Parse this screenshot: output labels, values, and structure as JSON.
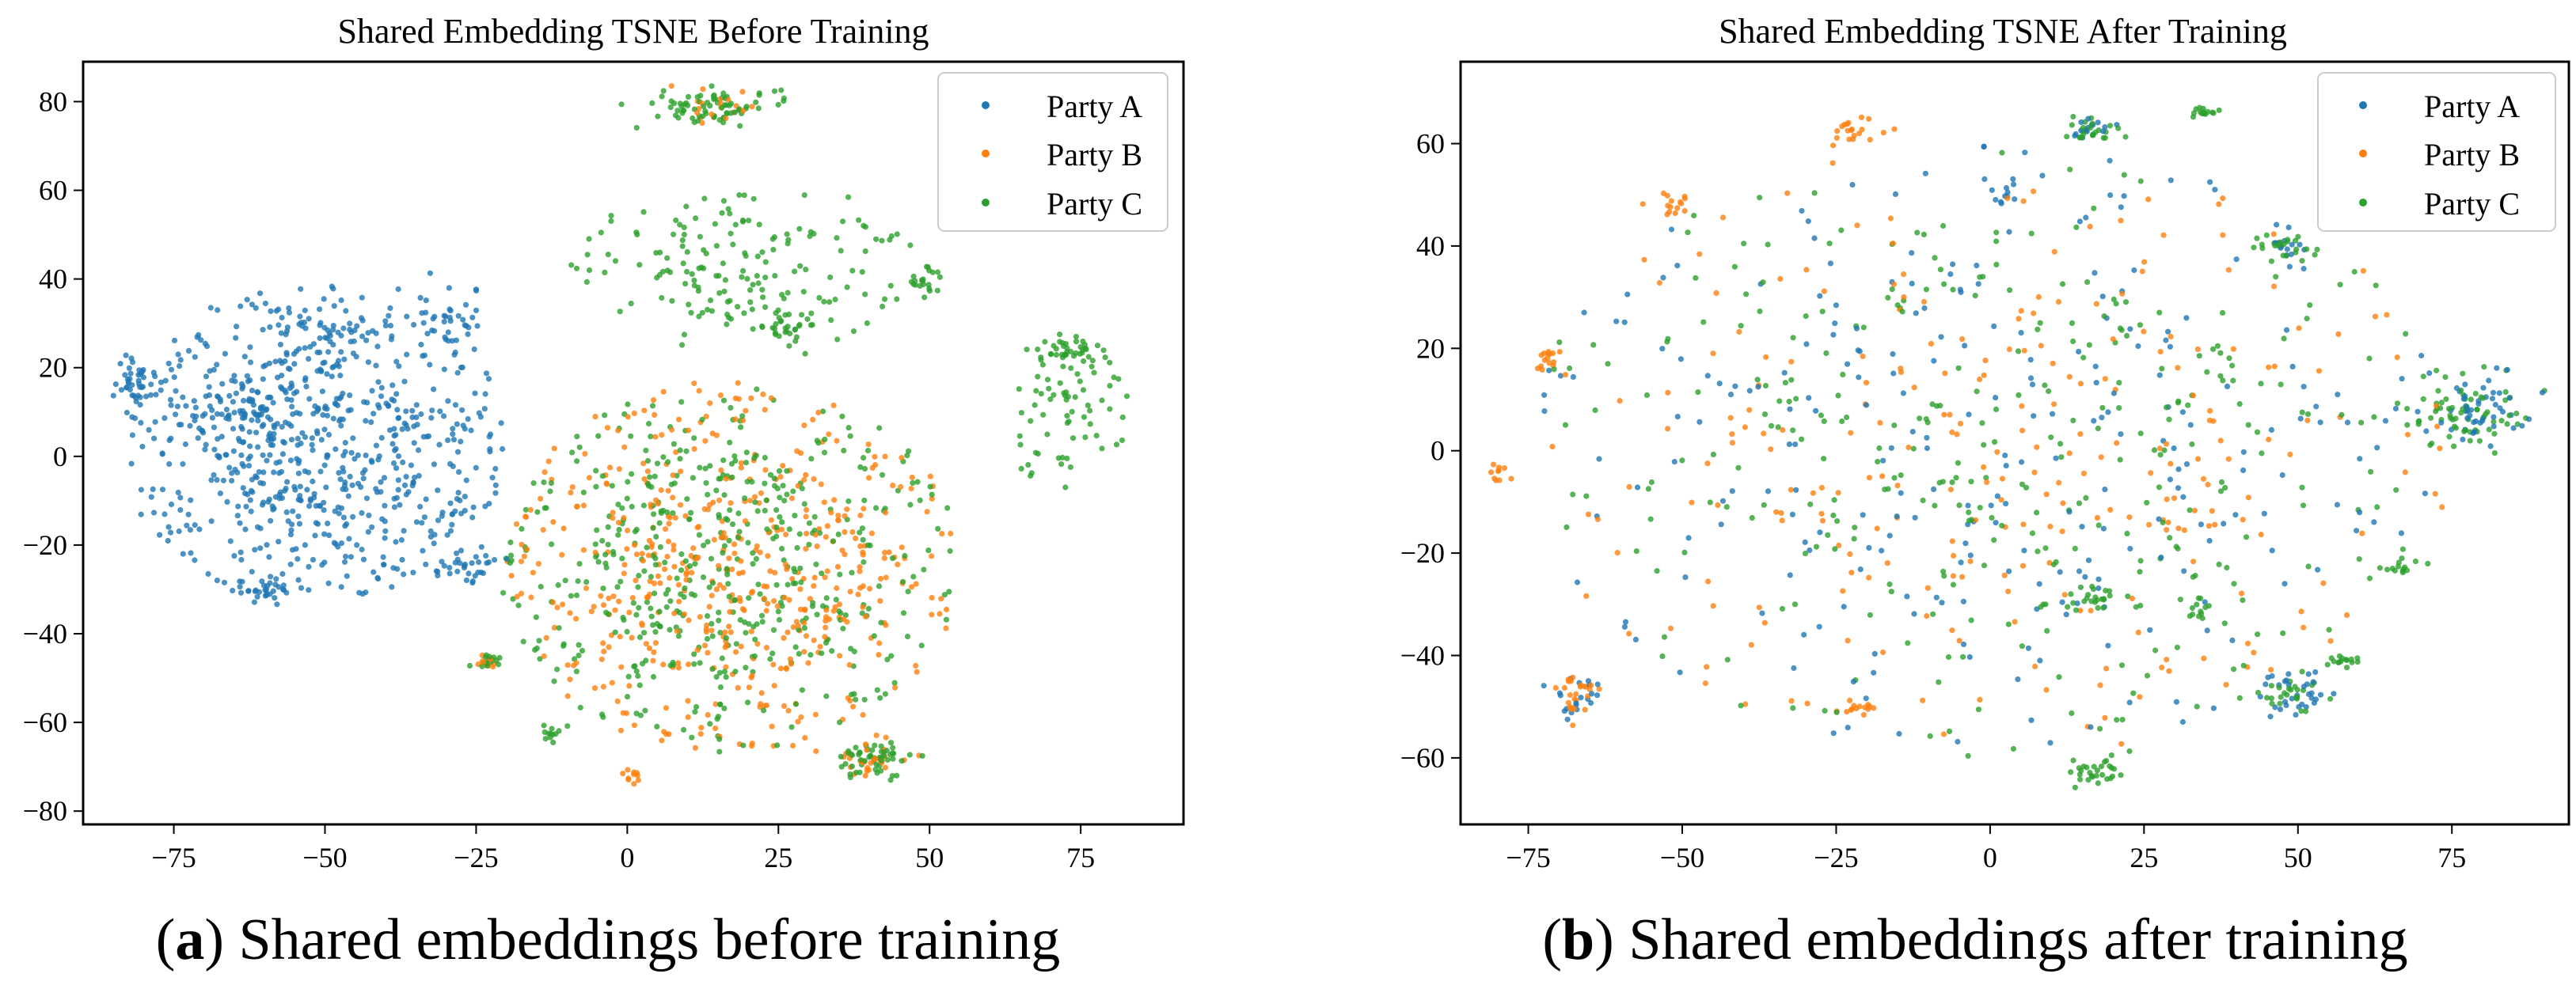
{
  "figure": {
    "panels": [
      {
        "letter": "a",
        "caption": "Shared embeddings before training"
      },
      {
        "letter": "b",
        "caption": "Shared embeddings after training"
      }
    ]
  },
  "colors": {
    "Party A": "#1f77b4",
    "Party B": "#ff7f0e",
    "Party C": "#2ca02c"
  },
  "chart_data": [
    {
      "type": "scatter",
      "title": "Shared Embedding TSNE Before Training",
      "xlabel": "",
      "ylabel": "",
      "xlim": [
        -90,
        92
      ],
      "ylim": [
        -83,
        89
      ],
      "xticks": [
        -75,
        -50,
        -25,
        0,
        25,
        50,
        75
      ],
      "yticks": [
        -80,
        -60,
        -40,
        -20,
        0,
        20,
        40,
        60,
        80
      ],
      "legend": {
        "placement": "top-right",
        "entries": [
          "Party A",
          "Party B",
          "Party C"
        ]
      },
      "series": [
        {
          "name": "Party A",
          "seed": 11,
          "count": 0,
          "clusters": [
            {
              "cx": -52,
              "cy": 3,
              "rx": 32,
              "ry": 36,
              "n": 700,
              "core": 0
            },
            {
              "cx": -81,
              "cy": 17,
              "rx": 4,
              "ry": 5,
              "n": 45,
              "core": 1
            },
            {
              "cx": -62,
              "cy": 10,
              "rx": 3,
              "ry": 3,
              "n": 20,
              "core": 1
            },
            {
              "cx": -28,
              "cy": -25,
              "rx": 6,
              "ry": 4,
              "n": 35,
              "core": 1
            },
            {
              "cx": -60,
              "cy": -30,
              "rx": 6,
              "ry": 3,
              "n": 30,
              "core": 1
            },
            {
              "cx": -30,
              "cy": 30,
              "rx": 6,
              "ry": 7,
              "n": 40,
              "core": 1
            },
            {
              "cx": -50,
              "cy": 28,
              "rx": 7,
              "ry": 8,
              "n": 40,
              "core": 1
            }
          ]
        },
        {
          "name": "Party B",
          "seed": 23,
          "count": 0,
          "clusters": [
            {
              "cx": 17,
              "cy": -25,
              "rx": 38,
              "ry": 42,
              "n": 500,
              "core": 0
            },
            {
              "cx": 40,
              "cy": -68,
              "rx": 5,
              "ry": 4,
              "n": 30,
              "core": 1
            },
            {
              "cx": -23,
              "cy": -46,
              "rx": 2,
              "ry": 2,
              "n": 12,
              "core": 1
            },
            {
              "cx": 1,
              "cy": -72,
              "rx": 2,
              "ry": 2,
              "n": 10,
              "core": 1
            },
            {
              "cx": 14,
              "cy": 79,
              "rx": 7,
              "ry": 3,
              "n": 20,
              "core": 1
            }
          ]
        },
        {
          "name": "Party C",
          "seed": 37,
          "count": 0,
          "clusters": [
            {
              "cx": 17,
              "cy": -25,
              "rx": 38,
              "ry": 42,
              "n": 500,
              "core": 0
            },
            {
              "cx": 14,
              "cy": 79,
              "rx": 11,
              "ry": 4,
              "n": 75,
              "core": 1
            },
            {
              "cx": 20,
              "cy": 42,
              "rx": 30,
              "ry": 20,
              "n": 170,
              "core": 0
            },
            {
              "cx": 72,
              "cy": 10,
              "rx": 11,
              "ry": 18,
              "n": 70,
              "core": 0
            },
            {
              "cx": 73,
              "cy": 24,
              "rx": 5,
              "ry": 2,
              "n": 35,
              "core": 1
            },
            {
              "cx": 40,
              "cy": -68,
              "rx": 5,
              "ry": 4,
              "n": 55,
              "core": 1
            },
            {
              "cx": 49,
              "cy": 39,
              "rx": 3,
              "ry": 3,
              "n": 20,
              "core": 1
            },
            {
              "cx": 26,
              "cy": 30,
              "rx": 5,
              "ry": 3,
              "n": 25,
              "core": 1
            },
            {
              "cx": -23,
              "cy": -46,
              "rx": 2,
              "ry": 2,
              "n": 14,
              "core": 1
            },
            {
              "cx": -12,
              "cy": -62,
              "rx": 2,
              "ry": 2,
              "n": 12,
              "core": 1
            }
          ]
        }
      ]
    },
    {
      "type": "scatter",
      "title": "Shared Embedding TSNE After Training",
      "xlabel": "",
      "ylabel": "",
      "xlim": [
        -86,
        94
      ],
      "ylim": [
        -73,
        76
      ],
      "xticks": [
        -75,
        -50,
        -25,
        0,
        25,
        50,
        75
      ],
      "yticks": [
        -60,
        -40,
        -20,
        0,
        20,
        40,
        60
      ],
      "legend": {
        "placement": "top-right",
        "entries": [
          "Party A",
          "Party B",
          "Party C"
        ]
      },
      "series": [
        {
          "name": "Party A",
          "seed": 51,
          "count": 0,
          "clusters": [
            {
              "cx": 0,
              "cy": 0,
              "rx": 75,
              "ry": 60,
              "n": 260,
              "core": 0
            },
            {
              "cx": 78,
              "cy": 8,
              "rx": 10,
              "ry": 7,
              "n": 50,
              "core": 1
            },
            {
              "cx": 49,
              "cy": -47,
              "rx": 5,
              "ry": 4,
              "n": 30,
              "core": 1
            },
            {
              "cx": -67,
              "cy": -48,
              "rx": 4,
              "ry": 5,
              "n": 20,
              "core": 1
            },
            {
              "cx": 17,
              "cy": 63,
              "rx": 4,
              "ry": 2,
              "n": 15,
              "core": 1
            },
            {
              "cx": 48,
              "cy": 40,
              "rx": 4,
              "ry": 3,
              "n": 15,
              "core": 1
            },
            {
              "cx": 2,
              "cy": 50,
              "rx": 2,
              "ry": 2,
              "n": 10,
              "core": 1
            }
          ]
        },
        {
          "name": "Party B",
          "seed": 67,
          "count": 0,
          "clusters": [
            {
              "cx": 0,
              "cy": 0,
              "rx": 75,
              "ry": 60,
              "n": 260,
              "core": 0
            },
            {
              "cx": -21,
              "cy": 63,
              "rx": 4,
              "ry": 2,
              "n": 20,
              "core": 1
            },
            {
              "cx": -67,
              "cy": -48,
              "rx": 4,
              "ry": 5,
              "n": 25,
              "core": 1
            },
            {
              "cx": -72,
              "cy": 18,
              "rx": 2,
              "ry": 3,
              "n": 15,
              "core": 1
            },
            {
              "cx": -52,
              "cy": 48,
              "rx": 3,
              "ry": 2,
              "n": 15,
              "core": 1
            },
            {
              "cx": -21,
              "cy": -50,
              "rx": 3,
              "ry": 2,
              "n": 12,
              "core": 1
            },
            {
              "cx": -80,
              "cy": -4,
              "rx": 2,
              "ry": 2,
              "n": 10,
              "core": 1
            }
          ]
        },
        {
          "name": "Party C",
          "seed": 83,
          "count": 0,
          "clusters": [
            {
              "cx": 0,
              "cy": 0,
              "rx": 75,
              "ry": 60,
              "n": 320,
              "core": 0
            },
            {
              "cx": 78,
              "cy": 8,
              "rx": 10,
              "ry": 7,
              "n": 70,
              "core": 1
            },
            {
              "cx": 17,
              "cy": -63,
              "rx": 4,
              "ry": 3,
              "n": 30,
              "core": 1
            },
            {
              "cx": 17,
              "cy": 63,
              "rx": 4,
              "ry": 2,
              "n": 25,
              "core": 1
            },
            {
              "cx": 35,
              "cy": 66,
              "rx": 3,
              "ry": 1,
              "n": 15,
              "core": 1
            },
            {
              "cx": 48,
              "cy": 40,
              "rx": 4,
              "ry": 3,
              "n": 25,
              "core": 1
            },
            {
              "cx": 58,
              "cy": -41,
              "rx": 3,
              "ry": 1,
              "n": 15,
              "core": 1
            },
            {
              "cx": 17,
              "cy": -29,
              "rx": 3,
              "ry": 3,
              "n": 20,
              "core": 1
            },
            {
              "cx": 67,
              "cy": -22,
              "rx": 3,
              "ry": 2,
              "n": 15,
              "core": 1
            },
            {
              "cx": 34,
              "cy": -31,
              "rx": 2,
              "ry": 2,
              "n": 12,
              "core": 1
            },
            {
              "cx": 49,
              "cy": -47,
              "rx": 5,
              "ry": 4,
              "n": 25,
              "core": 1
            }
          ]
        }
      ]
    }
  ]
}
